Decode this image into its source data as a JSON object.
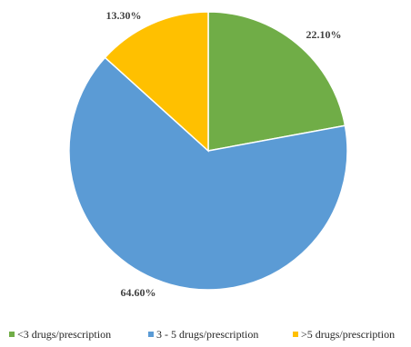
{
  "chart_data": {
    "type": "pie",
    "categories": [
      "<3 drugs/prescription",
      "3 - 5 drugs/prescription",
      ">5 drugs/prescription"
    ],
    "values": [
      22.1,
      64.6,
      13.3
    ],
    "data_labels": [
      "22.10%",
      "64.60%",
      "13.30%"
    ],
    "colors": [
      "#70AD47",
      "#5B9BD5",
      "#FFC000"
    ],
    "start_angle_deg": 0,
    "direction": "clockwise",
    "legend_position": "bottom"
  }
}
